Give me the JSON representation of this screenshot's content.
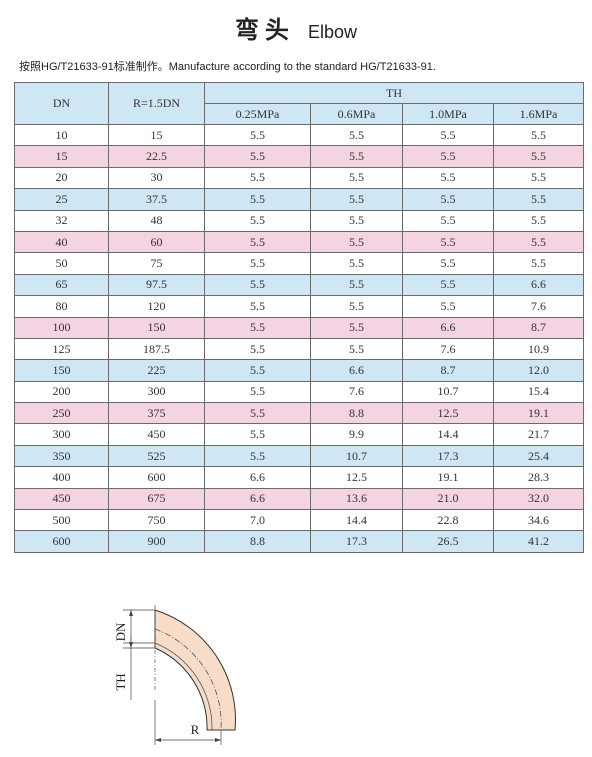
{
  "title": {
    "cn": "弯头",
    "en": "Elbow"
  },
  "subtitle": "按照HG/T21633-91标准制作。Manufacture according to the standard HG/T21633-91.",
  "table": {
    "headers": {
      "dn": "DN",
      "r": "R=1.5DN",
      "th": "TH",
      "p1": "0.25MPa",
      "p2": "0.6MPa",
      "p3": "1.0MPa",
      "p4": "1.6MPa"
    },
    "rows": [
      {
        "style": "white",
        "cells": [
          "10",
          "15",
          "5.5",
          "5.5",
          "5.5",
          "5.5"
        ]
      },
      {
        "style": "pink",
        "cells": [
          "15",
          "22.5",
          "5.5",
          "5.5",
          "5.5",
          "5.5"
        ]
      },
      {
        "style": "white",
        "cells": [
          "20",
          "30",
          "5.5",
          "5.5",
          "5.5",
          "5.5"
        ]
      },
      {
        "style": "blue",
        "cells": [
          "25",
          "37.5",
          "5.5",
          "5.5",
          "5.5",
          "5.5"
        ]
      },
      {
        "style": "white",
        "cells": [
          "32",
          "48",
          "5.5",
          "5.5",
          "5.5",
          "5.5"
        ]
      },
      {
        "style": "pink",
        "cells": [
          "40",
          "60",
          "5.5",
          "5.5",
          "5.5",
          "5.5"
        ]
      },
      {
        "style": "white",
        "cells": [
          "50",
          "75",
          "5.5",
          "5.5",
          "5.5",
          "5.5"
        ]
      },
      {
        "style": "blue",
        "cells": [
          "65",
          "97.5",
          "5.5",
          "5.5",
          "5.5",
          "6.6"
        ]
      },
      {
        "style": "white",
        "cells": [
          "80",
          "120",
          "5.5",
          "5.5",
          "5.5",
          "7.6"
        ]
      },
      {
        "style": "pink",
        "cells": [
          "100",
          "150",
          "5.5",
          "5.5",
          "6.6",
          "8.7"
        ]
      },
      {
        "style": "white",
        "cells": [
          "125",
          "187.5",
          "5.5",
          "5.5",
          "7.6",
          "10.9"
        ]
      },
      {
        "style": "blue",
        "cells": [
          "150",
          "225",
          "5.5",
          "6.6",
          "8.7",
          "12.0"
        ]
      },
      {
        "style": "white",
        "cells": [
          "200",
          "300",
          "5.5",
          "7.6",
          "10.7",
          "15.4"
        ]
      },
      {
        "style": "pink",
        "cells": [
          "250",
          "375",
          "5.5",
          "8.8",
          "12.5",
          "19.1"
        ]
      },
      {
        "style": "white",
        "cells": [
          "300",
          "450",
          "5.5",
          "9.9",
          "14.4",
          "21.7"
        ]
      },
      {
        "style": "blue",
        "cells": [
          "350",
          "525",
          "5.5",
          "10.7",
          "17.3",
          "25.4"
        ]
      },
      {
        "style": "white",
        "cells": [
          "400",
          "600",
          "6.6",
          "12.5",
          "19.1",
          "28.3"
        ]
      },
      {
        "style": "pink",
        "cells": [
          "450",
          "675",
          "6.6",
          "13.6",
          "21.0",
          "32.0"
        ]
      },
      {
        "style": "white",
        "cells": [
          "500",
          "750",
          "7.0",
          "14.4",
          "22.8",
          "34.6"
        ]
      },
      {
        "style": "blue",
        "cells": [
          "600",
          "900",
          "8.8",
          "17.3",
          "26.5",
          "41.2"
        ]
      }
    ]
  },
  "diagram": {
    "dn_label": "DN",
    "th_label": "TH",
    "r_label": "R"
  }
}
